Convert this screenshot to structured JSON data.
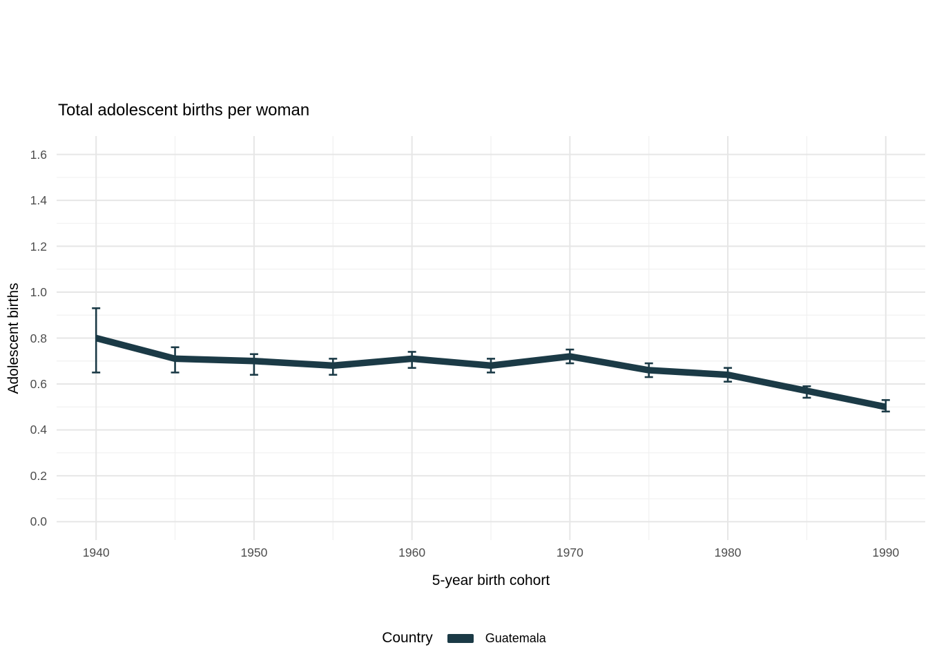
{
  "page": {
    "background": "#ffffff"
  },
  "chart_data": {
    "type": "line",
    "title": "Total adolescent births per woman",
    "xlabel": "5-year birth cohort",
    "ylabel": "Adolescent births",
    "x": [
      1940,
      1945,
      1950,
      1955,
      1960,
      1965,
      1970,
      1975,
      1980,
      1985,
      1990
    ],
    "series": [
      {
        "name": "Guatemala",
        "color": "#1b3a46",
        "values": [
          0.8,
          0.71,
          0.7,
          0.68,
          0.71,
          0.68,
          0.72,
          0.66,
          0.64,
          0.57,
          0.5
        ],
        "ci_low": [
          0.65,
          0.65,
          0.64,
          0.64,
          0.67,
          0.65,
          0.69,
          0.63,
          0.61,
          0.54,
          0.48
        ],
        "ci_high": [
          0.93,
          0.76,
          0.73,
          0.71,
          0.74,
          0.71,
          0.75,
          0.69,
          0.67,
          0.59,
          0.53
        ]
      }
    ],
    "error_bars": true,
    "xlim": [
      1937.5,
      1992.5
    ],
    "ylim": [
      -0.08,
      1.68
    ],
    "x_ticks": [
      1940,
      1950,
      1960,
      1970,
      1980,
      1990
    ],
    "x_minor_ticks": [
      1945,
      1955,
      1965,
      1975,
      1985
    ],
    "y_ticks": [
      0.0,
      0.2,
      0.4,
      0.6,
      0.8,
      1.0,
      1.2,
      1.4,
      1.6
    ],
    "y_minor_ticks": [
      0.1,
      0.3,
      0.5,
      0.7,
      0.9,
      1.1,
      1.3,
      1.5
    ],
    "grid": "major+minor",
    "legend": {
      "title": "Country",
      "position": "bottom",
      "items": [
        "Guatemala"
      ]
    },
    "colors": {
      "grid_major": "#e6e6e6",
      "grid_minor": "#f1f1f1",
      "tick_label": "#4d4d4d",
      "text": "#000000"
    }
  }
}
